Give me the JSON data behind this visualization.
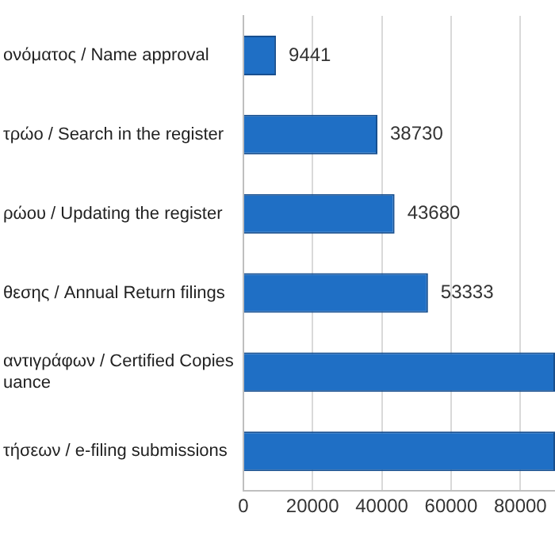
{
  "chart_data": {
    "type": "bar",
    "orientation": "horizontal",
    "categories": [
      "ονόματος / Name approval",
      "τρώο / Search in the register",
      "ρώου / Updating the register",
      "θεσης / Annual Return filings",
      "αντιγράφων / Certified Copies\nuance",
      "τήσεων / e-filing submissions"
    ],
    "values": [
      9441,
      38730,
      43680,
      53333,
      90000,
      90000
    ],
    "value_labels": [
      "9441",
      "38730",
      "43680",
      "53333",
      null,
      null
    ],
    "color": "#1f6fc5",
    "xlim": [
      0,
      90000
    ],
    "xticks": [
      0,
      20000,
      40000,
      60000,
      80000
    ],
    "grid": "x"
  }
}
